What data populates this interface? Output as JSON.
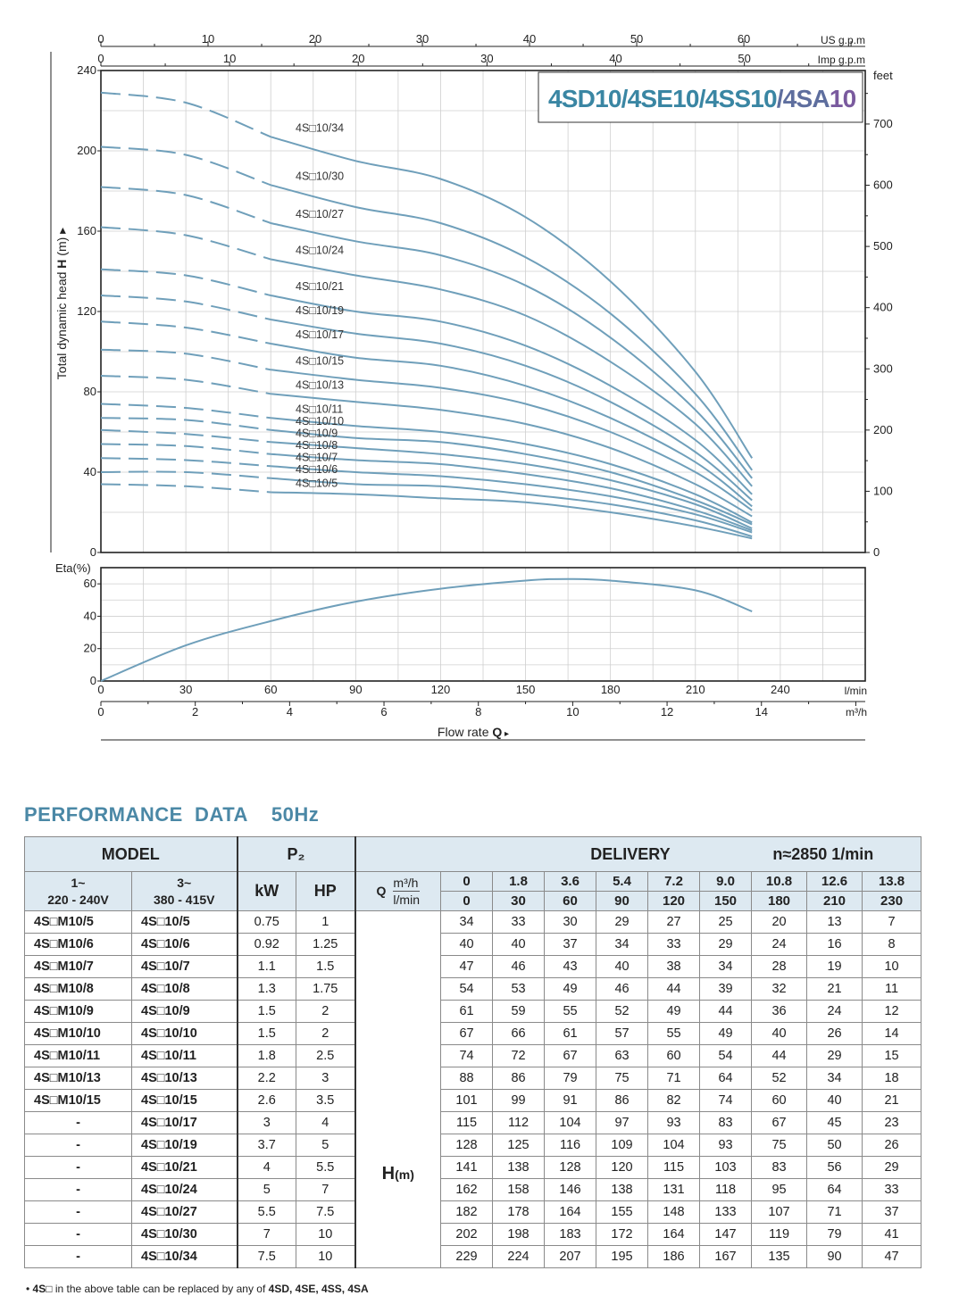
{
  "chart_data": {
    "type": "line",
    "title": "4SD10/4SE10/4SS10/4SA10",
    "title_parts": [
      {
        "text": "4SD",
        "color": "#3a86a3"
      },
      {
        "text": "10",
        "color": "#3a86a3"
      },
      {
        "text": "/4SE",
        "color": "#3a86a3"
      },
      {
        "text": "10",
        "color": "#3a86a3"
      },
      {
        "text": "/4SS",
        "color": "#3a86a3"
      },
      {
        "text": "10",
        "color": "#3a86a3"
      },
      {
        "text": "/4SA",
        "color": "#5e6e9e"
      },
      {
        "text": "10",
        "color": "#7a5a9e"
      }
    ],
    "ylabel": "Total dynamic head H (m)",
    "ylabel_arrow": "▸",
    "xlabel": "Flow rate Q",
    "xlabel_arrow": "▸",
    "x_unit_lmin": "l/min",
    "x_unit_m3h": "m³/h",
    "x_unit_usgpm": "US g.p.m",
    "x_unit_impgpm": "Imp g.p.m",
    "y2_unit": "feet",
    "eta_label": "Eta(%)",
    "xlim_lmin": [
      0,
      270
    ],
    "ylim": [
      0,
      240
    ],
    "y_ticks": [
      0,
      40,
      80,
      120,
      160,
      200,
      240
    ],
    "feet_ticks": [
      0,
      100,
      200,
      300,
      400,
      500,
      600,
      700
    ],
    "lmin_ticks": [
      0,
      30,
      60,
      90,
      120,
      150,
      180,
      210,
      240
    ],
    "m3h_ticks": [
      0,
      2,
      4,
      6,
      8,
      10,
      12,
      14
    ],
    "usgpm_ticks": [
      0,
      10,
      20,
      30,
      40,
      50,
      60
    ],
    "impgpm_ticks": [
      0,
      10,
      20,
      30,
      40,
      50
    ],
    "eta_ticks": [
      0,
      20,
      40,
      60
    ],
    "eta_ylim": [
      0,
      70
    ],
    "series_color": "#6f9fba",
    "dashed_until_lmin": 60,
    "x": [
      0,
      30,
      60,
      90,
      120,
      150,
      180,
      210,
      230
    ],
    "series": [
      {
        "name": "4S□10/5",
        "values": [
          34,
          33,
          30,
          29,
          27,
          25,
          20,
          13,
          7
        ]
      },
      {
        "name": "4S□10/6",
        "values": [
          40,
          40,
          37,
          34,
          33,
          29,
          24,
          16,
          8
        ]
      },
      {
        "name": "4S□10/7",
        "values": [
          47,
          46,
          43,
          40,
          38,
          34,
          28,
          19,
          10
        ]
      },
      {
        "name": "4S□10/8",
        "values": [
          54,
          53,
          49,
          46,
          44,
          39,
          32,
          21,
          11
        ]
      },
      {
        "name": "4S□10/9",
        "values": [
          61,
          59,
          55,
          52,
          49,
          44,
          36,
          24,
          12
        ]
      },
      {
        "name": "4S□10/10",
        "values": [
          67,
          66,
          61,
          57,
          55,
          49,
          40,
          26,
          14
        ]
      },
      {
        "name": "4S□10/11",
        "values": [
          74,
          72,
          67,
          63,
          60,
          54,
          44,
          29,
          15
        ]
      },
      {
        "name": "4S□10/13",
        "values": [
          88,
          86,
          79,
          75,
          71,
          64,
          52,
          34,
          18
        ]
      },
      {
        "name": "4S□10/15",
        "values": [
          101,
          99,
          91,
          86,
          82,
          74,
          60,
          40,
          21
        ]
      },
      {
        "name": "4S□10/17",
        "values": [
          115,
          112,
          104,
          97,
          93,
          83,
          67,
          45,
          23
        ]
      },
      {
        "name": "4S□10/19",
        "values": [
          128,
          125,
          116,
          109,
          104,
          93,
          75,
          50,
          26
        ]
      },
      {
        "name": "4S□10/21",
        "values": [
          141,
          138,
          128,
          120,
          115,
          103,
          83,
          56,
          29
        ]
      },
      {
        "name": "4S□10/24",
        "values": [
          162,
          158,
          146,
          138,
          131,
          118,
          95,
          64,
          33
        ]
      },
      {
        "name": "4S□10/27",
        "values": [
          182,
          178,
          164,
          155,
          148,
          133,
          107,
          71,
          37
        ]
      },
      {
        "name": "4S□10/30",
        "values": [
          202,
          198,
          183,
          172,
          164,
          147,
          119,
          79,
          41
        ]
      },
      {
        "name": "4S□10/34",
        "values": [
          229,
          224,
          207,
          195,
          186,
          167,
          135,
          90,
          47
        ]
      }
    ],
    "eta": {
      "x": [
        0,
        30,
        60,
        90,
        120,
        150,
        165,
        180,
        210,
        230
      ],
      "values": [
        0,
        22,
        37,
        49,
        57,
        62,
        63,
        62,
        56,
        43
      ]
    }
  },
  "table": {
    "section_title": "PERFORMANCE  DATA",
    "section_hz": "50Hz",
    "h_model": "MODEL",
    "h_p2": "P₂",
    "h_delivery": "DELIVERY",
    "h_speed": "n≈2850 1/min",
    "h_1ph_a": "1~",
    "h_1ph_b": "220 - 240V",
    "h_3ph_a": "3~",
    "h_3ph_b": "380 - 415V",
    "h_kw": "kW",
    "h_hp": "HP",
    "h_q": "Q",
    "h_m3h": "m³/h",
    "h_lmin": "l/min",
    "h_hm": "H",
    "h_hm_unit": "(m)",
    "q_m3h": [
      "0",
      "1.8",
      "3.6",
      "5.4",
      "7.2",
      "9.0",
      "10.8",
      "12.6",
      "13.8"
    ],
    "q_lmin": [
      "0",
      "30",
      "60",
      "90",
      "120",
      "150",
      "180",
      "210",
      "230"
    ],
    "rows": [
      {
        "m1": "4S□M10/5",
        "m3": "4S□10/5",
        "kw": "0.75",
        "hp": "1",
        "h": [
          "34",
          "33",
          "30",
          "29",
          "27",
          "25",
          "20",
          "13",
          "7"
        ]
      },
      {
        "m1": "4S□M10/6",
        "m3": "4S□10/6",
        "kw": "0.92",
        "hp": "1.25",
        "h": [
          "40",
          "40",
          "37",
          "34",
          "33",
          "29",
          "24",
          "16",
          "8"
        ]
      },
      {
        "m1": "4S□M10/7",
        "m3": "4S□10/7",
        "kw": "1.1",
        "hp": "1.5",
        "h": [
          "47",
          "46",
          "43",
          "40",
          "38",
          "34",
          "28",
          "19",
          "10"
        ]
      },
      {
        "m1": "4S□M10/8",
        "m3": "4S□10/8",
        "kw": "1.3",
        "hp": "1.75",
        "h": [
          "54",
          "53",
          "49",
          "46",
          "44",
          "39",
          "32",
          "21",
          "11"
        ]
      },
      {
        "m1": "4S□M10/9",
        "m3": "4S□10/9",
        "kw": "1.5",
        "hp": "2",
        "h": [
          "61",
          "59",
          "55",
          "52",
          "49",
          "44",
          "36",
          "24",
          "12"
        ]
      },
      {
        "m1": "4S□M10/10",
        "m3": "4S□10/10",
        "kw": "1.5",
        "hp": "2",
        "h": [
          "67",
          "66",
          "61",
          "57",
          "55",
          "49",
          "40",
          "26",
          "14"
        ]
      },
      {
        "m1": "4S□M10/11",
        "m3": "4S□10/11",
        "kw": "1.8",
        "hp": "2.5",
        "h": [
          "74",
          "72",
          "67",
          "63",
          "60",
          "54",
          "44",
          "29",
          "15"
        ]
      },
      {
        "m1": "4S□M10/13",
        "m3": "4S□10/13",
        "kw": "2.2",
        "hp": "3",
        "h": [
          "88",
          "86",
          "79",
          "75",
          "71",
          "64",
          "52",
          "34",
          "18"
        ]
      },
      {
        "m1": "4S□M10/15",
        "m3": "4S□10/15",
        "kw": "2.6",
        "hp": "3.5",
        "h": [
          "101",
          "99",
          "91",
          "86",
          "82",
          "74",
          "60",
          "40",
          "21"
        ]
      },
      {
        "m1": "-",
        "m3": "4S□10/17",
        "kw": "3",
        "hp": "4",
        "h": [
          "115",
          "112",
          "104",
          "97",
          "93",
          "83",
          "67",
          "45",
          "23"
        ]
      },
      {
        "m1": "-",
        "m3": "4S□10/19",
        "kw": "3.7",
        "hp": "5",
        "h": [
          "128",
          "125",
          "116",
          "109",
          "104",
          "93",
          "75",
          "50",
          "26"
        ]
      },
      {
        "m1": "-",
        "m3": "4S□10/21",
        "kw": "4",
        "hp": "5.5",
        "h": [
          "141",
          "138",
          "128",
          "120",
          "115",
          "103",
          "83",
          "56",
          "29"
        ]
      },
      {
        "m1": "-",
        "m3": "4S□10/24",
        "kw": "5",
        "hp": "7",
        "h": [
          "162",
          "158",
          "146",
          "138",
          "131",
          "118",
          "95",
          "64",
          "33"
        ]
      },
      {
        "m1": "-",
        "m3": "4S□10/27",
        "kw": "5.5",
        "hp": "7.5",
        "h": [
          "182",
          "178",
          "164",
          "155",
          "148",
          "133",
          "107",
          "71",
          "37"
        ]
      },
      {
        "m1": "-",
        "m3": "4S□10/30",
        "kw": "7",
        "hp": "10",
        "h": [
          "202",
          "198",
          "183",
          "172",
          "164",
          "147",
          "119",
          "79",
          "41"
        ]
      },
      {
        "m1": "-",
        "m3": "4S□10/34",
        "kw": "7.5",
        "hp": "10",
        "h": [
          "229",
          "224",
          "207",
          "195",
          "186",
          "167",
          "135",
          "90",
          "47"
        ]
      }
    ],
    "footnote_bullet": "•",
    "footnote_a": "4S□",
    "footnote_b": " in the above table can be replaced by any of ",
    "footnote_c": "4SD, 4SE, 4SS, 4SA"
  }
}
